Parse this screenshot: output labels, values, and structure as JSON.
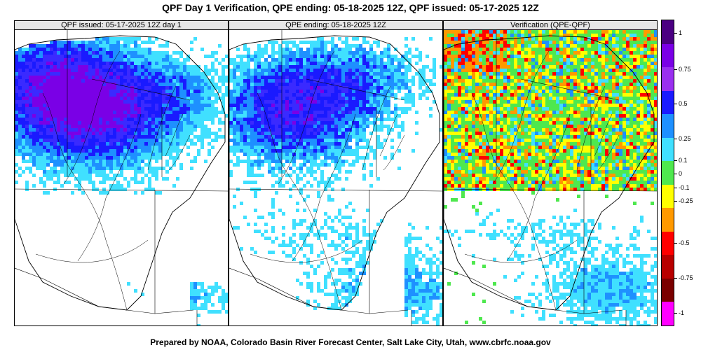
{
  "title": "QPF Day 1 Verification, QPE ending: 05-18-2025 12Z, QPF issued: 05-17-2025 12Z",
  "footer": "Prepared by NOAA, Colorado Basin River Forecast Center, Salt Lake City, Utah, www.cbrfc.noaa.gov",
  "panels": [
    {
      "label": "QPF issued: 05-17-2025 12Z day 1"
    },
    {
      "label": "QPE ending: 05-18-2025 12Z"
    },
    {
      "label": "Verification (QPE-QPF)"
    }
  ],
  "legend": {
    "colors": [
      "#4b0082",
      "#7a00e6",
      "#9a30f0",
      "#1a1aff",
      "#1e90ff",
      "#40e0ff",
      "#4ee84e",
      "#ffff00",
      "#ff9900",
      "#ff0000",
      "#b80000",
      "#7a0000",
      "#ff00ff"
    ],
    "labels": [
      {
        "text": "1",
        "value": 1
      },
      {
        "text": "0.75",
        "value": 0.75
      },
      {
        "text": "0.5",
        "value": 0.5
      },
      {
        "text": "0.25",
        "value": 0.25
      },
      {
        "text": "0.1",
        "value": 0.1
      },
      {
        "text": "0",
        "value": 0
      },
      {
        "text": "-0.1",
        "value": -0.1
      },
      {
        "text": "-0.25",
        "value": -0.25
      },
      {
        "text": "-0.5",
        "value": -0.5
      },
      {
        "text": "-0.75",
        "value": -0.75
      },
      {
        "text": "-1",
        "value": -1
      }
    ]
  }
}
